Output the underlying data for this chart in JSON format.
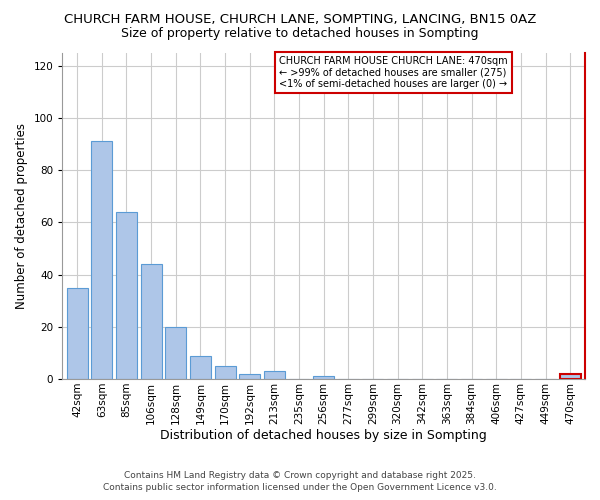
{
  "title": "CHURCH FARM HOUSE, CHURCH LANE, SOMPTING, LANCING, BN15 0AZ",
  "subtitle": "Size of property relative to detached houses in Sompting",
  "xlabel": "Distribution of detached houses by size in Sompting",
  "ylabel": "Number of detached properties",
  "bar_labels": [
    "42sqm",
    "63sqm",
    "85sqm",
    "106sqm",
    "128sqm",
    "149sqm",
    "170sqm",
    "192sqm",
    "213sqm",
    "235sqm",
    "256sqm",
    "277sqm",
    "299sqm",
    "320sqm",
    "342sqm",
    "363sqm",
    "384sqm",
    "406sqm",
    "427sqm",
    "449sqm",
    "470sqm"
  ],
  "bar_values": [
    35,
    91,
    64,
    44,
    20,
    9,
    5,
    2,
    3,
    0,
    1,
    0,
    0,
    0,
    0,
    0,
    0,
    0,
    0,
    0,
    2
  ],
  "bar_color": "#aec6e8",
  "bar_edge_color": "#5b9bd5",
  "highlight_bar_index": 20,
  "highlight_bar_edge_color": "#cc0000",
  "highlight_box_edge_color": "#cc0000",
  "right_spine_color": "#cc0000",
  "ylim": [
    0,
    125
  ],
  "yticks": [
    0,
    20,
    40,
    60,
    80,
    100,
    120
  ],
  "grid_color": "#cccccc",
  "annotation_title": "CHURCH FARM HOUSE CHURCH LANE: 470sqm",
  "annotation_line1": "← >99% of detached houses are smaller (275)",
  "annotation_line2": "<1% of semi-detached houses are larger (0) →",
  "annotation_fontsize": 7.0,
  "title_fontsize": 9.5,
  "subtitle_fontsize": 9.0,
  "xlabel_fontsize": 9.0,
  "ylabel_fontsize": 8.5,
  "tick_fontsize": 7.5,
  "footer_line1": "Contains HM Land Registry data © Crown copyright and database right 2025.",
  "footer_line2": "Contains public sector information licensed under the Open Government Licence v3.0.",
  "footer_fontsize": 6.5
}
